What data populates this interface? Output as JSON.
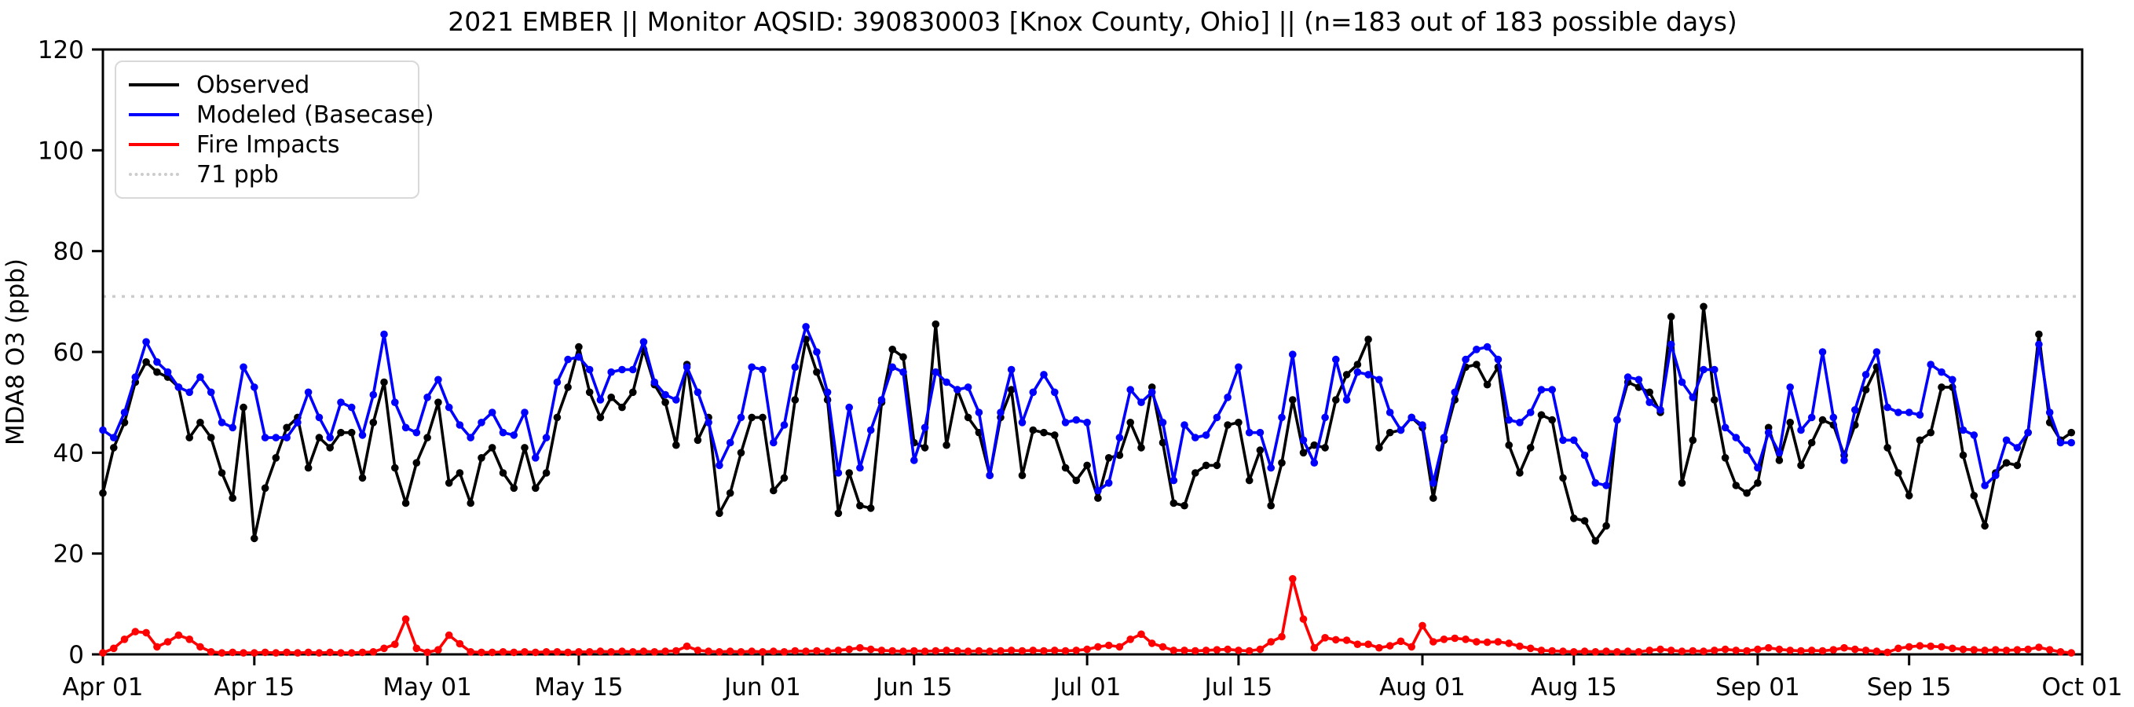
{
  "chart_data": {
    "type": "line",
    "title": "2021 EMBER || Monitor AQSID: 390830003 [Knox County, Ohio] || (n=183 out of 183 possible days)",
    "ylabel": "MDA8 O3 (ppb)",
    "xlabel": "",
    "ylim": [
      0,
      120
    ],
    "y_ticks": [
      0,
      20,
      40,
      60,
      80,
      100,
      120
    ],
    "x_range_days": 183,
    "x_ticks": [
      {
        "label": "Apr 01",
        "day": 0
      },
      {
        "label": "Apr 15",
        "day": 14
      },
      {
        "label": "May 01",
        "day": 30
      },
      {
        "label": "May 15",
        "day": 44
      },
      {
        "label": "Jun 01",
        "day": 61
      },
      {
        "label": "Jun 15",
        "day": 75
      },
      {
        "label": "Jul 01",
        "day": 91
      },
      {
        "label": "Jul 15",
        "day": 105
      },
      {
        "label": "Aug 01",
        "day": 122
      },
      {
        "label": "Aug 15",
        "day": 136
      },
      {
        "label": "Sep 01",
        "day": 153
      },
      {
        "label": "Sep 15",
        "day": 167
      },
      {
        "label": "Oct 01",
        "day": 183
      }
    ],
    "grid": false,
    "legend_position": "upper-left",
    "threshold": {
      "label": "71 ppb",
      "value": 71,
      "color": "#cccccc",
      "style": "dotted"
    },
    "series": [
      {
        "name": "Observed",
        "color": "#000000",
        "marker": "circle",
        "values": [
          32,
          41,
          46,
          54,
          58,
          56,
          55,
          53,
          43,
          46,
          43,
          36,
          31,
          49,
          23,
          33,
          39,
          45,
          47,
          37,
          43,
          41,
          44,
          44,
          35,
          46,
          54,
          37,
          30,
          38,
          43,
          50,
          34,
          36,
          30,
          39,
          41,
          36,
          33,
          41,
          33,
          36,
          47,
          53,
          61,
          52,
          47,
          51,
          49,
          52,
          60.5,
          53.5,
          50,
          41.5,
          57.5,
          42.5,
          47,
          28,
          32,
          40,
          47,
          47,
          32.5,
          35,
          50.5,
          62.5,
          56,
          50.5,
          28,
          36,
          29.5,
          29,
          50,
          60.5,
          59,
          42,
          41,
          65.5,
          41.5,
          52.5,
          47,
          44,
          35.5,
          47,
          52.5,
          35.5,
          44.5,
          44,
          43.5,
          37,
          34.5,
          37.5,
          31,
          39,
          39.5,
          46,
          41,
          53,
          42,
          30,
          29.5,
          36,
          37.5,
          37.5,
          45.5,
          46,
          34.5,
          40.5,
          29.5,
          38,
          50.5,
          40,
          41.5,
          41,
          50.5,
          55.5,
          57.5,
          62.5,
          41,
          44,
          44.5,
          47,
          45,
          31,
          42.5,
          50.5,
          57,
          57.5,
          53.5,
          57,
          41.5,
          36,
          41,
          47.5,
          46.5,
          35,
          27,
          26.5,
          22.5,
          25.5,
          46.5,
          54,
          53,
          52,
          48,
          67,
          34,
          42.5,
          69,
          50.5,
          39,
          33.5,
          32,
          34,
          45,
          38.5,
          46,
          37.5,
          42,
          46.5,
          45.5,
          39.5,
          45.5,
          52.5,
          57,
          41,
          36,
          31.5,
          42.5,
          44,
          53,
          53,
          39.5,
          31.5,
          25.5,
          36,
          38,
          37.5,
          44,
          63.5,
          46,
          42.5,
          44
        ]
      },
      {
        "name": "Modeled (Basecase)",
        "color": "#0000ff",
        "marker": "circle",
        "values": [
          44.5,
          43,
          48,
          55,
          62,
          58,
          56,
          53,
          52,
          55,
          52,
          46,
          45,
          57,
          53,
          43,
          43,
          43,
          46,
          52,
          47,
          43,
          50,
          49,
          43.5,
          51.5,
          63.5,
          50,
          45,
          44,
          51,
          54.5,
          49,
          45.5,
          43,
          46,
          48,
          44,
          43.5,
          48,
          39,
          43,
          54,
          58.5,
          59,
          56.5,
          50.5,
          56,
          56.5,
          56.5,
          62,
          54,
          51.5,
          50.5,
          57,
          52,
          46,
          37.5,
          42,
          47,
          57,
          56.5,
          42,
          45.5,
          57,
          65,
          60,
          52,
          36,
          49,
          37,
          44.5,
          50.5,
          57,
          56,
          38.5,
          45,
          56,
          54,
          52.5,
          53,
          48,
          35.5,
          48,
          56.5,
          46,
          52,
          55.5,
          52,
          46,
          46.5,
          46,
          32.5,
          34,
          43,
          52.5,
          50,
          52,
          46,
          34.5,
          45.5,
          43,
          43.5,
          47,
          51,
          57,
          44,
          44,
          37,
          47,
          59.5,
          42.5,
          38,
          47,
          58.5,
          50.5,
          56,
          55.5,
          54.5,
          48,
          44.5,
          47,
          45.5,
          34,
          43,
          52,
          58.5,
          60.5,
          61,
          58.5,
          46.5,
          46,
          48,
          52.5,
          52.5,
          42.5,
          42.5,
          39.5,
          34,
          33.5,
          46.5,
          55,
          54.5,
          50,
          48.5,
          61.5,
          54,
          51,
          56.5,
          56.5,
          45,
          43,
          40.5,
          37,
          44,
          40,
          53,
          44.5,
          47,
          60,
          47,
          38.5,
          48.5,
          55.5,
          60,
          49,
          48,
          48,
          47.5,
          57.5,
          56,
          54.5,
          44.5,
          43.5,
          33.5,
          35.5,
          42.5,
          41,
          44,
          61.5,
          48,
          42,
          42
        ]
      },
      {
        "name": "Fire Impacts",
        "color": "#ff0000",
        "marker": "circle",
        "values": [
          0.3,
          1.2,
          3,
          4.5,
          4.3,
          1.5,
          2.5,
          3.8,
          3,
          1.5,
          0.5,
          0.3,
          0.4,
          0.3,
          0.3,
          0.4,
          0.3,
          0.4,
          0.3,
          0.4,
          0.3,
          0.4,
          0.3,
          0.3,
          0.4,
          0.5,
          1.2,
          2,
          7,
          1.2,
          0.4,
          0.9,
          3.8,
          2.1,
          0.5,
          0.4,
          0.4,
          0.5,
          0.4,
          0.5,
          0.4,
          0.5,
          0.5,
          0.4,
          0.5,
          0.5,
          0.6,
          0.5,
          0.6,
          0.5,
          0.6,
          0.5,
          0.6,
          0.7,
          1.6,
          0.8,
          0.6,
          0.5,
          0.6,
          0.5,
          0.6,
          0.5,
          0.6,
          0.5,
          0.7,
          0.6,
          0.7,
          0.6,
          0.8,
          1,
          1.3,
          1,
          0.8,
          0.7,
          0.6,
          0.7,
          0.6,
          0.7,
          0.8,
          0.7,
          0.6,
          0.7,
          0.6,
          0.7,
          0.8,
          0.7,
          0.8,
          0.7,
          0.8,
          0.7,
          0.8,
          1,
          1.5,
          1.8,
          1.5,
          3,
          4,
          2.2,
          1.5,
          0.8,
          0.8,
          0.7,
          0.8,
          0.9,
          1,
          0.8,
          0.7,
          1,
          2.5,
          3.5,
          15,
          7,
          1.3,
          3.3,
          2.9,
          2.8,
          2,
          2,
          1.3,
          1.7,
          2.6,
          1.5,
          5.7,
          2.5,
          3,
          3.2,
          3,
          2.5,
          2.4,
          2.5,
          2.2,
          1.6,
          1.2,
          0.8,
          0.7,
          0.6,
          0.5,
          0.6,
          0.5,
          0.6,
          0.5,
          0.6,
          0.5,
          0.8,
          1,
          0.8,
          0.6,
          0.7,
          0.6,
          0.8,
          1,
          0.8,
          0.7,
          1,
          1.3,
          1,
          0.8,
          0.7,
          0.8,
          0.7,
          0.9,
          1.3,
          1,
          0.8,
          0.6,
          0.4,
          1.2,
          1.5,
          1.7,
          1.6,
          1.5,
          1.2,
          1,
          0.9,
          0.8,
          0.9,
          0.8,
          0.9,
          1,
          1.4,
          0.9,
          0.5,
          0.3
        ]
      }
    ]
  }
}
